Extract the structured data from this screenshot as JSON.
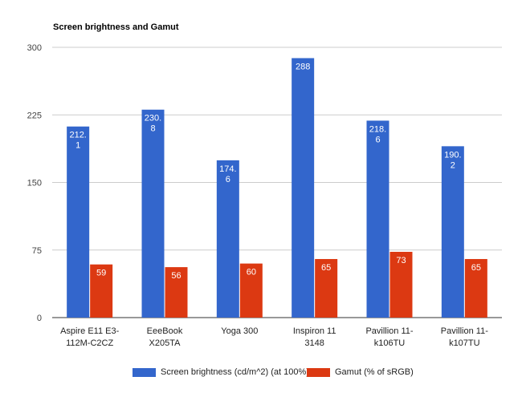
{
  "chart_data": {
    "type": "bar",
    "title": "Screen brightness and Gamut",
    "categories": [
      [
        "Aspire E11 E3-",
        "112M-C2CZ"
      ],
      [
        "EeeBook",
        "X205TA"
      ],
      [
        "Yoga 300"
      ],
      [
        "Inspiron 11",
        "3148"
      ],
      [
        "Pavillion 11-",
        "k106TU"
      ],
      [
        "Pavillion 11-",
        "k107TU"
      ]
    ],
    "series": [
      {
        "name": "Screen brightness (cd/m^2) (at 100%)",
        "color": "#3366cc",
        "values": [
          212.1,
          230.8,
          174.6,
          288,
          218.6,
          190.2
        ],
        "labels": [
          [
            "212.",
            "1"
          ],
          [
            "230.",
            "8"
          ],
          [
            "174.",
            "6"
          ],
          [
            "288"
          ],
          [
            "218.",
            "6"
          ],
          [
            "190.",
            "2"
          ]
        ]
      },
      {
        "name": "Gamut (% of sRGB)",
        "color": "#dc3912",
        "values": [
          59,
          56,
          60,
          65,
          73,
          65
        ],
        "labels": [
          [
            "59"
          ],
          [
            "56"
          ],
          [
            "60"
          ],
          [
            "65"
          ],
          [
            "73"
          ],
          [
            "65"
          ]
        ]
      }
    ],
    "yticks": [
      "0",
      "75",
      "150",
      "225",
      "300"
    ],
    "ylim": [
      0,
      300
    ],
    "grid": true,
    "legend_position": "bottom"
  }
}
